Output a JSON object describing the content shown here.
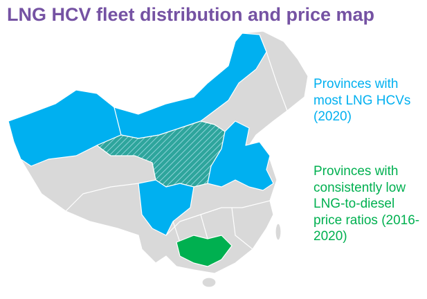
{
  "header": {
    "title": "LNG HCV fleet distribution and price map"
  },
  "legend": {
    "items": [
      {
        "label": "Provinces with most LNG HCVs (2020)"
      },
      {
        "label": "Provinces with consistently low LNG-to-diesel price ratios (2016-2020)"
      }
    ]
  }
}
